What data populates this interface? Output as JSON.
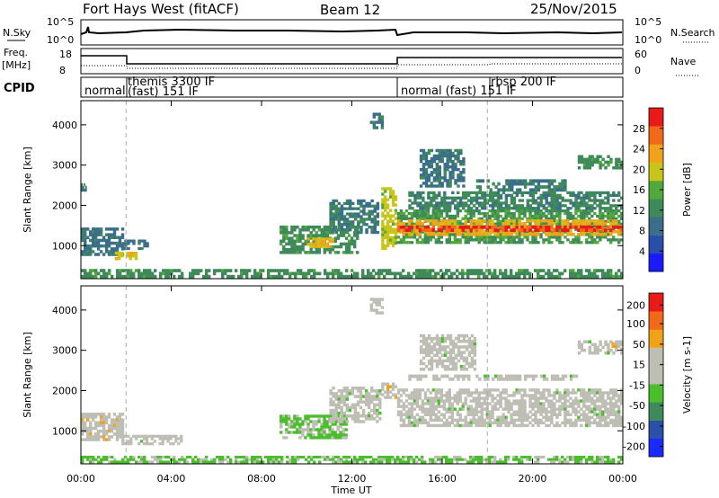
{
  "header": {
    "station": "Fort Hays West (fitACF)",
    "beam": "Beam 12",
    "date": "25/Nov/2015"
  },
  "panels": {
    "nsky_label": "N.Sky",
    "nsky_ticks": [
      "10^5",
      "10^0"
    ],
    "nsearch_label": "N.Search",
    "nsearch_ticks": [
      "10^5",
      "10^0"
    ],
    "freq_label": "Freq.",
    "freq_unit": "[MHz]",
    "freq_ticks": [
      "18",
      "8"
    ],
    "nave_label": "Nave",
    "nave_ticks": [
      "60",
      "0"
    ],
    "cpid_label": "CPID",
    "cpid_segments": [
      {
        "name": "normal",
        "start": 0.0,
        "end": 2.0
      },
      {
        "name": "themis 3300 IF",
        "start": 2.0,
        "end": 14.0
      },
      {
        "name": "(fast) 151 IF",
        "start": 2.0,
        "end": 14.0
      },
      {
        "name": "normal (fast) 151 IF",
        "start": 14.0,
        "end": 18.0
      },
      {
        "name": "rbsp 200 IF",
        "start": 18.0,
        "end": 24.0
      }
    ]
  },
  "colors": {
    "power_scale": [
      "#1a1aff",
      "#2b4ea8",
      "#3a6e8a",
      "#3f8a5a",
      "#52a83a",
      "#c8c41a",
      "#f0a21a",
      "#f06a1a",
      "#e81a1a"
    ],
    "velocity_scale": [
      "#1a2aff",
      "#2b50a8",
      "#3f8a5a",
      "#4bbe2e",
      "#bebeb4",
      "#bebeb4",
      "#f0a21a",
      "#f06a1a",
      "#e81a1a"
    ]
  },
  "chart_data": [
    {
      "type": "heatmap",
      "title": "Power",
      "xlabel": "Time UT",
      "ylabel": "Slant Range [km]",
      "xlim": [
        0,
        24
      ],
      "ylim": [
        180,
        4600
      ],
      "x_ticks": [
        "00:00",
        "04:00",
        "08:00",
        "12:00",
        "16:00",
        "20:00",
        "00:00"
      ],
      "y_ticks": [
        "1000",
        "2000",
        "3000",
        "4000"
      ],
      "colorbar": {
        "label": "Power [dB]",
        "ticks": [
          "4",
          "8",
          "12",
          "16",
          "20",
          "24",
          "28"
        ],
        "range": [
          0,
          30
        ]
      },
      "regions": [
        {
          "t0": 0.0,
          "t1": 0.25,
          "r0": 2350,
          "r1": 2550,
          "value": 9
        },
        {
          "t0": 0.0,
          "t1": 1.9,
          "r0": 750,
          "r1": 1450,
          "value": 9
        },
        {
          "t0": 1.5,
          "t1": 2.5,
          "r0": 650,
          "r1": 850,
          "value": 19
        },
        {
          "t0": 1.8,
          "t1": 3.0,
          "r0": 900,
          "r1": 1150,
          "value": 9
        },
        {
          "t0": 8.8,
          "t1": 12.3,
          "r0": 800,
          "r1": 1500,
          "value": 12
        },
        {
          "t0": 10.0,
          "t1": 11.2,
          "r0": 950,
          "r1": 1200,
          "value": 20
        },
        {
          "t0": 11.0,
          "t1": 13.2,
          "r0": 1300,
          "r1": 2150,
          "value": 10
        },
        {
          "t0": 13.3,
          "t1": 14.0,
          "r0": 900,
          "r1": 2450,
          "value": 18
        },
        {
          "t0": 12.8,
          "t1": 13.4,
          "r0": 3900,
          "r1": 4300,
          "value": 9
        },
        {
          "t0": 14.0,
          "t1": 24.0,
          "r0": 1050,
          "r1": 1900,
          "value": 13
        },
        {
          "t0": 14.0,
          "t1": 24.0,
          "r0": 1250,
          "r1": 1650,
          "value": 21
        },
        {
          "t0": 14.0,
          "t1": 24.0,
          "r0": 1350,
          "r1": 1500,
          "value": 27
        },
        {
          "t0": 14.5,
          "t1": 24.0,
          "r0": 1900,
          "r1": 2350,
          "value": 11
        },
        {
          "t0": 15.0,
          "t1": 17.0,
          "r0": 2450,
          "r1": 3400,
          "value": 9
        },
        {
          "t0": 17.5,
          "t1": 21.5,
          "r0": 2350,
          "r1": 2650,
          "value": 10
        },
        {
          "t0": 22.0,
          "t1": 24.0,
          "r0": 2900,
          "r1": 3250,
          "value": 12
        },
        {
          "t0": 0.0,
          "t1": 24.0,
          "r0": 200,
          "r1": 420,
          "value": 12
        }
      ]
    },
    {
      "type": "heatmap",
      "title": "Velocity",
      "xlabel": "Time UT",
      "ylabel": "Slant Range [km]",
      "xlim": [
        0,
        24
      ],
      "ylim": [
        180,
        4600
      ],
      "x_ticks": [
        "00:00",
        "04:00",
        "08:00",
        "12:00",
        "16:00",
        "20:00",
        "00:00"
      ],
      "y_ticks": [
        "1000",
        "2000",
        "3000",
        "4000"
      ],
      "colorbar": {
        "label": "Velocity [m s-1]",
        "ticks": [
          "200",
          "100",
          "50",
          "15",
          "-15",
          "-50",
          "-100",
          "-200"
        ],
        "range": [
          -250,
          250
        ]
      },
      "regions": [
        {
          "t0": 0.0,
          "t1": 1.9,
          "r0": 750,
          "r1": 1450,
          "value": 60
        },
        {
          "t0": 1.8,
          "t1": 4.5,
          "r0": 650,
          "r1": 900,
          "value": 0
        },
        {
          "t0": 8.8,
          "t1": 11.8,
          "r0": 800,
          "r1": 1400,
          "value": -40
        },
        {
          "t0": 11.0,
          "t1": 13.3,
          "r0": 1200,
          "r1": 2100,
          "value": 0
        },
        {
          "t0": 13.3,
          "t1": 14.0,
          "r0": 1800,
          "r1": 2200,
          "value": 60
        },
        {
          "t0": 14.0,
          "t1": 24.0,
          "r0": 1100,
          "r1": 2050,
          "value": 0
        },
        {
          "t0": 14.5,
          "t1": 22.0,
          "r0": 2250,
          "r1": 2400,
          "value": 0
        },
        {
          "t0": 15.0,
          "t1": 17.5,
          "r0": 2500,
          "r1": 3400,
          "value": 0
        },
        {
          "t0": 22.0,
          "t1": 24.0,
          "r0": 2900,
          "r1": 3250,
          "value": 0
        },
        {
          "t0": 23.5,
          "t1": 24.0,
          "r0": 3000,
          "r1": 3200,
          "value": 80
        },
        {
          "t0": 12.8,
          "t1": 13.4,
          "r0": 3900,
          "r1": 4300,
          "value": 0
        },
        {
          "t0": 0.0,
          "t1": 24.0,
          "r0": 200,
          "r1": 380,
          "value": -40
        }
      ]
    }
  ]
}
